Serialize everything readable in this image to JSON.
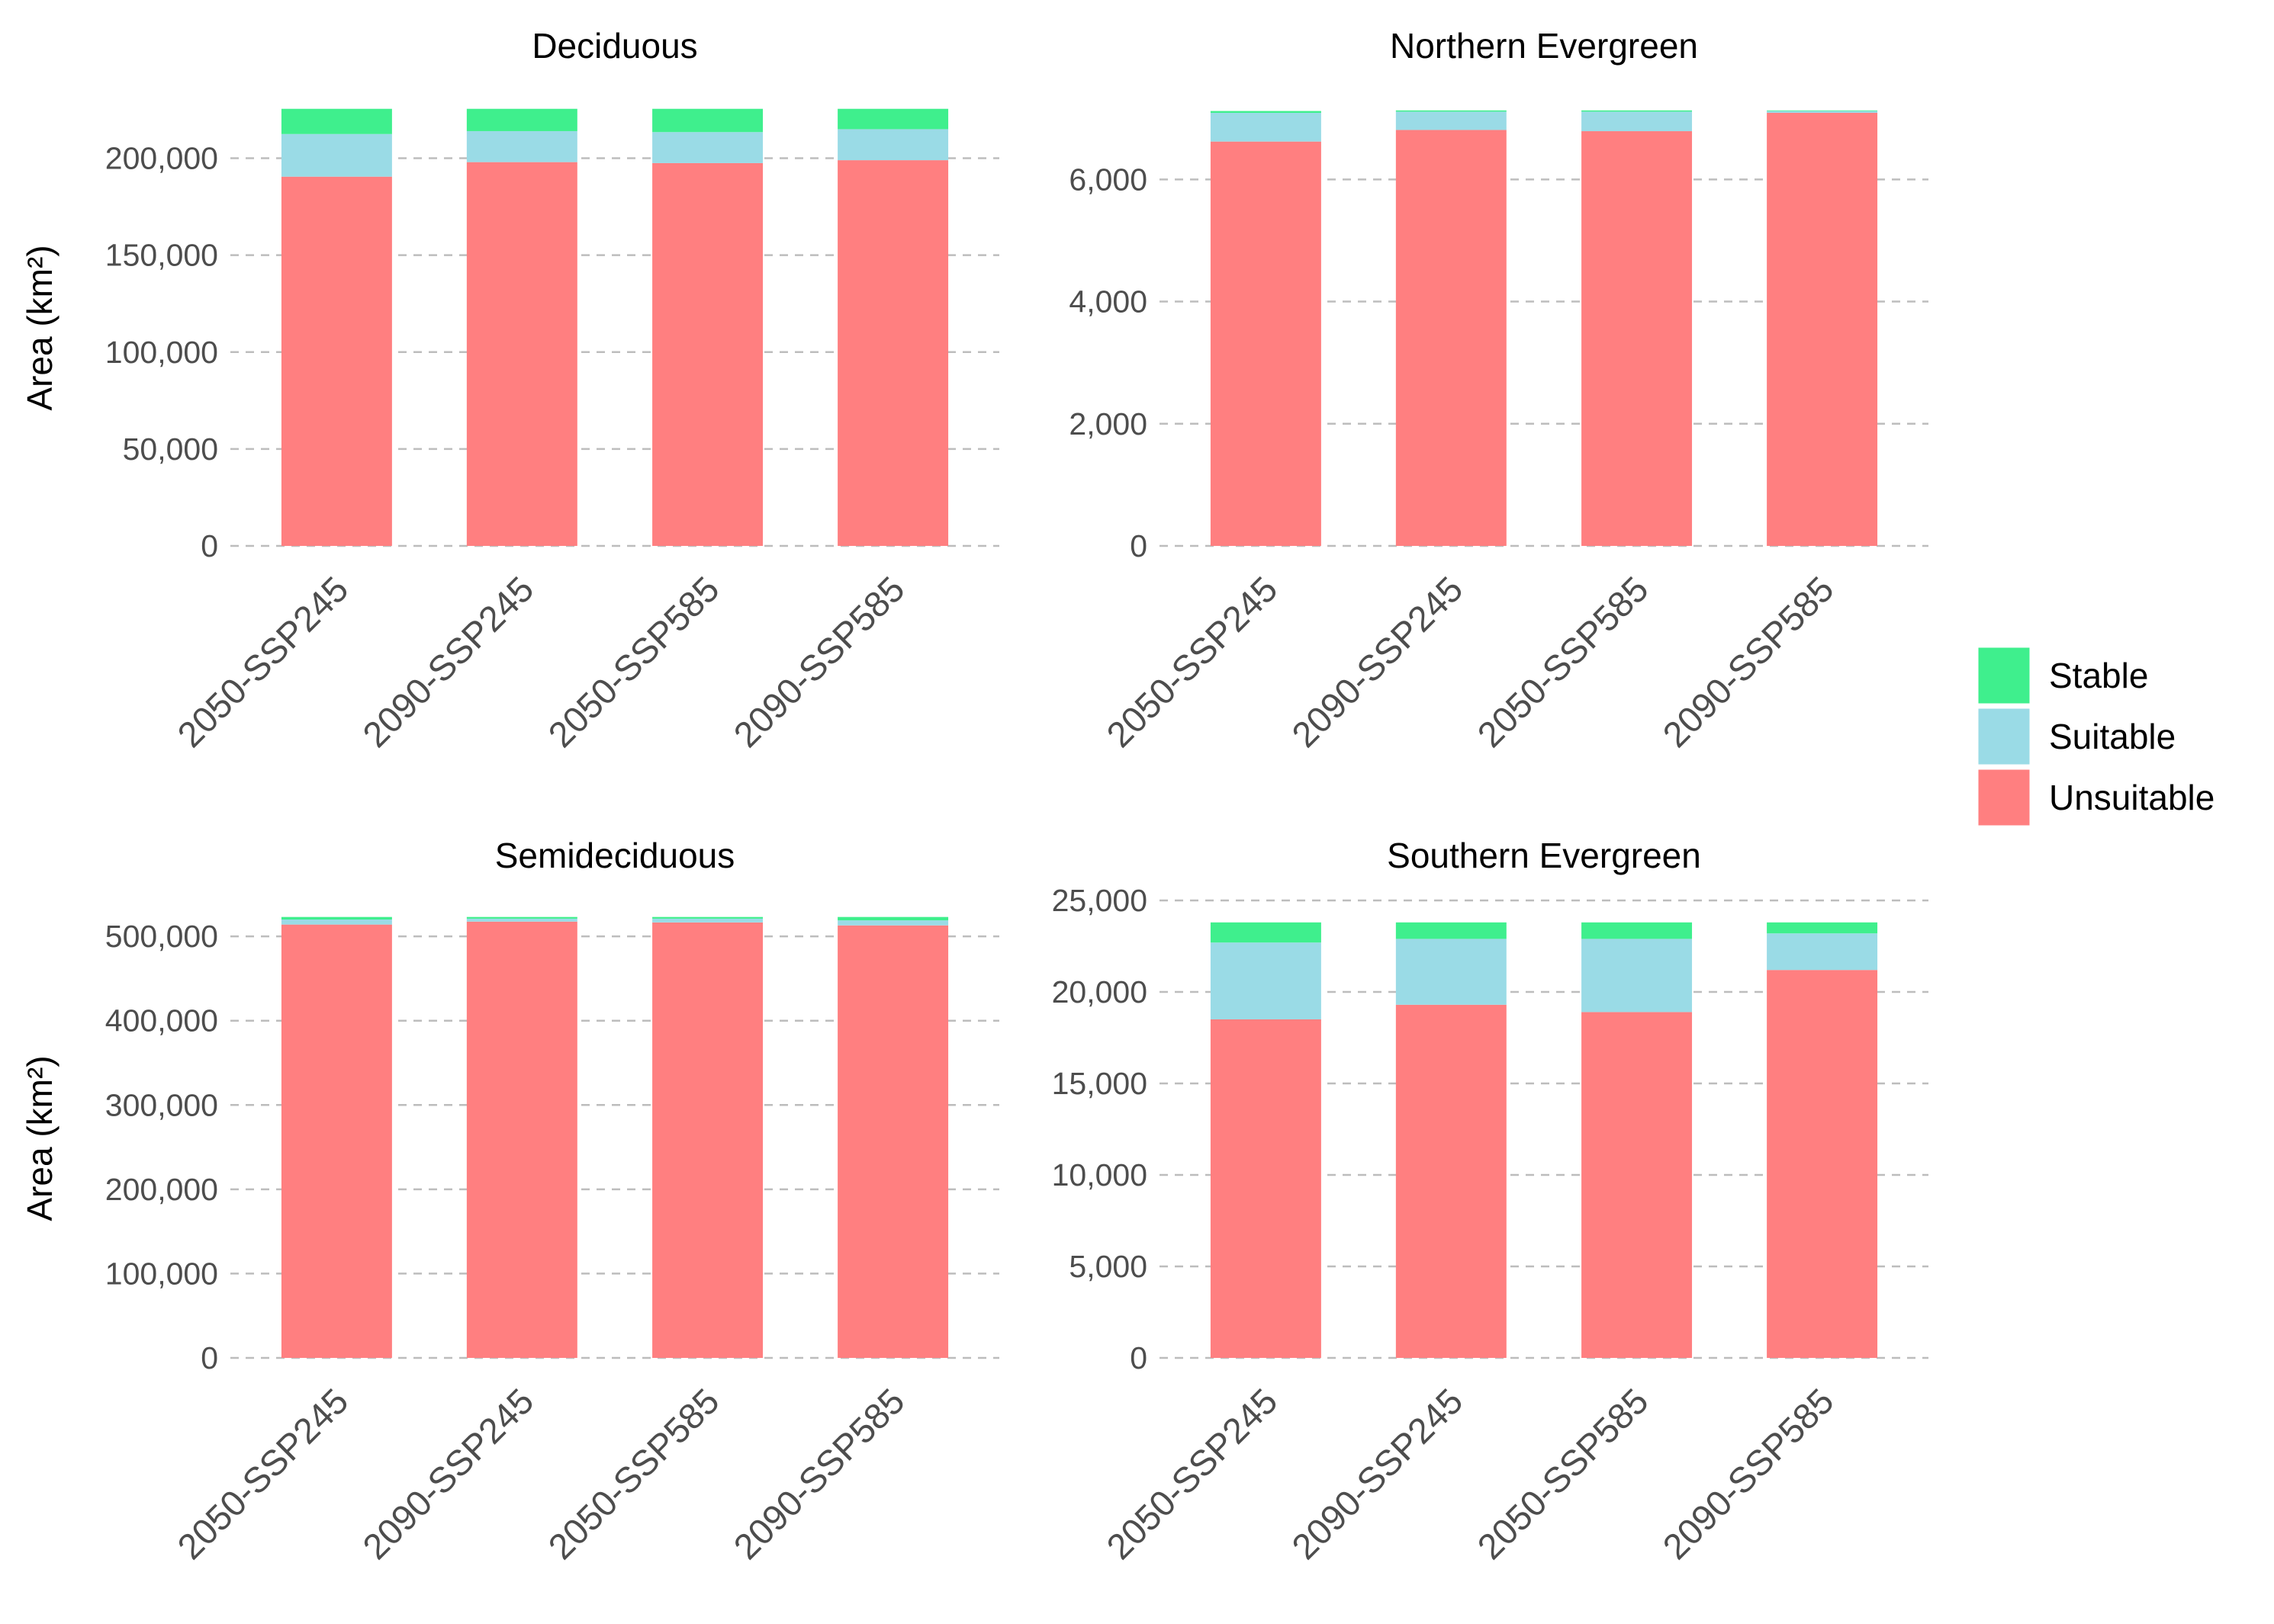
{
  "chart_data": [
    {
      "type": "bar",
      "stacked": true,
      "title": "Deciduous",
      "ylabel": "Area (km²)",
      "xlabel": "",
      "categories": [
        "2050-SSP245",
        "2090-SSP245",
        "2050-SSP585",
        "2090-SSP585"
      ],
      "ylim": [
        0,
        225000
      ],
      "yticks": [
        0,
        50000,
        100000,
        150000,
        200000
      ],
      "ytick_labels": [
        "0",
        "50,000",
        "100,000",
        "150,000",
        "200,000"
      ],
      "series": [
        {
          "name": "Unsuitable",
          "values": [
            190500,
            198000,
            197500,
            199000
          ]
        },
        {
          "name": "Suitable",
          "values": [
            22000,
            16000,
            16000,
            16000
          ]
        },
        {
          "name": "Stable",
          "values": [
            13000,
            11500,
            12000,
            10500
          ]
        }
      ]
    },
    {
      "type": "bar",
      "stacked": true,
      "title": "Northern Evergreen",
      "ylabel": "",
      "xlabel": "",
      "categories": [
        "2050-SSP245",
        "2090-SSP245",
        "2050-SSP585",
        "2090-SSP585"
      ],
      "ylim": [
        0,
        7140
      ],
      "yticks": [
        0,
        2000,
        4000,
        6000
      ],
      "ytick_labels": [
        "0",
        "2,000",
        "4,000",
        "6,000"
      ],
      "series": [
        {
          "name": "Unsuitable",
          "values": [
            6620,
            6810,
            6790,
            7090
          ]
        },
        {
          "name": "Suitable",
          "values": [
            470,
            300,
            320,
            30
          ]
        },
        {
          "name": "Stable",
          "values": [
            30,
            20,
            20,
            10
          ]
        }
      ]
    },
    {
      "type": "bar",
      "stacked": true,
      "title": "Semideciduous",
      "ylabel": "Area (km²)",
      "xlabel": "",
      "categories": [
        "2050-SSP245",
        "2090-SSP245",
        "2050-SSP585",
        "2090-SSP585"
      ],
      "ylim": [
        0,
        520000
      ],
      "yticks": [
        0,
        100000,
        200000,
        300000,
        400000,
        500000
      ],
      "ytick_labels": [
        "0",
        "100,000",
        "200,000",
        "300,000",
        "400,000",
        "500,000"
      ],
      "series": [
        {
          "name": "Unsuitable",
          "values": [
            514000,
            517500,
            516500,
            513000
          ]
        },
        {
          "name": "Suitable",
          "values": [
            6000,
            3500,
            4500,
            6000
          ]
        },
        {
          "name": "Stable",
          "values": [
            3000,
            2000,
            2000,
            4000
          ]
        }
      ]
    },
    {
      "type": "bar",
      "stacked": true,
      "title": "Southern Evergreen",
      "ylabel": "",
      "xlabel": "",
      "categories": [
        "2050-SSP245",
        "2090-SSP245",
        "2050-SSP585",
        "2090-SSP585"
      ],
      "ylim": [
        0,
        25000
      ],
      "yticks": [
        0,
        5000,
        10000,
        15000,
        20000,
        25000
      ],
      "ytick_labels": [
        "0",
        "5,000",
        "10,000",
        "15,000",
        "20,000",
        "25,000"
      ],
      "series": [
        {
          "name": "Unsuitable",
          "values": [
            18500,
            19300,
            18900,
            21200
          ]
        },
        {
          "name": "Suitable",
          "values": [
            4200,
            3600,
            4000,
            2000
          ]
        },
        {
          "name": "Stable",
          "values": [
            1100,
            900,
            900,
            600
          ]
        }
      ]
    }
  ],
  "legend": {
    "placement": "right",
    "items": [
      {
        "label": "Stable",
        "color": "#3FEF8D"
      },
      {
        "label": "Suitable",
        "color": "#9ADBE6"
      },
      {
        "label": "Unsuitable",
        "color": "#FF7F80"
      }
    ]
  },
  "colors": {
    "Unsuitable": "#FF7F80",
    "Suitable": "#9ADBE6",
    "Stable": "#3FEF8D",
    "grid": "#BDBDBD"
  }
}
